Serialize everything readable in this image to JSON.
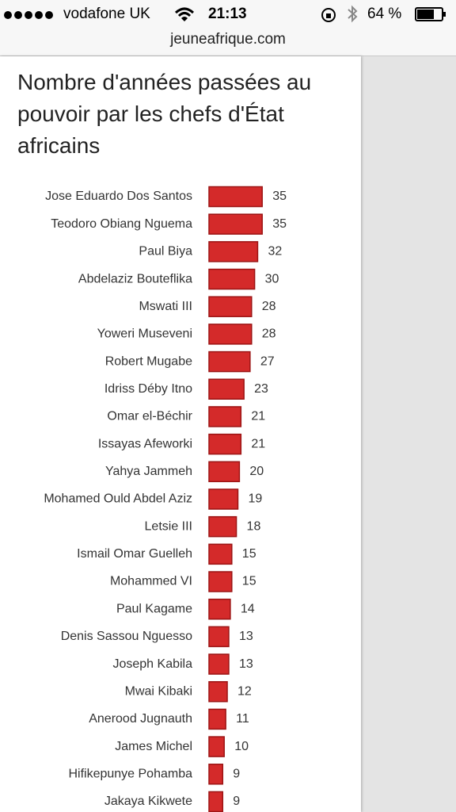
{
  "status_bar": {
    "carrier": "vodafone UK",
    "time": "21:13",
    "battery": "64 %"
  },
  "address_bar": {
    "url": "jeuneafrique.com"
  },
  "chart_data": {
    "type": "bar",
    "orientation": "horizontal",
    "title": "Nombre d'années passées au pouvoir par les chefs d'État africains",
    "categories": [
      "Jose Eduardo Dos Santos",
      "Teodoro Obiang Nguema",
      "Paul Biya",
      "Abdelaziz Bouteflika",
      "Mswati III",
      "Yoweri Museveni",
      "Robert Mugabe",
      "Idriss Déby Itno",
      "Omar el-Béchir",
      "Issayas Afeworki",
      "Yahya Jammeh",
      "Mohamed Ould Abdel Aziz",
      "Letsie III",
      "Ismail Omar Guelleh",
      "Mohammed VI",
      "Paul Kagame",
      "Denis Sassou Nguesso",
      "Joseph Kabila",
      "Mwai Kibaki",
      "Anerood Jugnauth",
      "James Michel",
      "Hifikepunye Pohamba",
      "Jakaya Kikwete"
    ],
    "values": [
      35,
      35,
      32,
      30,
      28,
      28,
      27,
      23,
      21,
      21,
      20,
      19,
      18,
      15,
      15,
      14,
      13,
      13,
      12,
      11,
      10,
      9,
      9
    ],
    "color": "#d42a2a"
  }
}
